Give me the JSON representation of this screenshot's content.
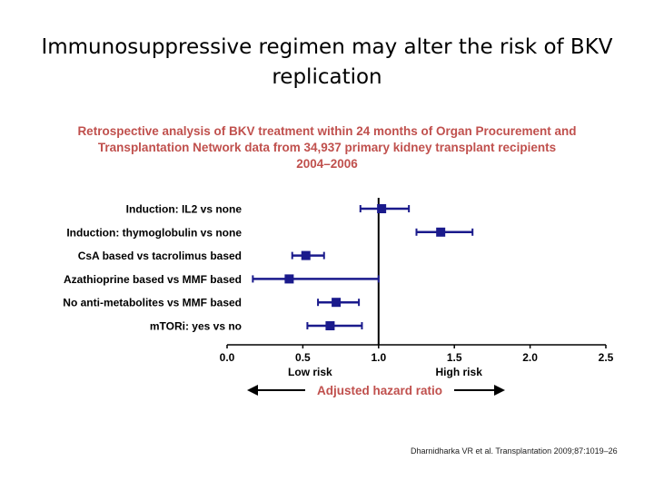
{
  "slide": {
    "title_lines": [
      "Immunosuppressive regimen may alter the risk of BKV",
      "replication"
    ],
    "citation": "Dharnidharka VR et al. Transplantation 2009;87:1019–26"
  },
  "colors": {
    "subtitle": "#c0504d",
    "marker": "#1a1a8c",
    "ci_line": "#1a1a8c",
    "reference_line": "#000000",
    "axis": "#000000",
    "axis_text": "#000000",
    "hazard_label": "#c0504d"
  },
  "chart_data": {
    "type": "forest",
    "title_lines": [
      "Retrospective analysis of BKV treatment within 24 months of Organ Procurement and",
      "Transplantation Network data from 34,937 primary kidney transplant recipients",
      "2004–2006"
    ],
    "categories": [
      "Induction: IL2 vs none",
      "Induction: thymoglobulin vs none",
      "CsA based vs tacrolimus based",
      "Azathioprine based vs MMF based",
      "No anti-metabolites vs MMF based",
      "mTORi: yes vs no"
    ],
    "estimates": [
      1.02,
      1.41,
      0.52,
      0.41,
      0.72,
      0.68
    ],
    "ci_lower": [
      0.88,
      1.25,
      0.43,
      0.17,
      0.6,
      0.53
    ],
    "ci_upper": [
      1.2,
      1.62,
      0.64,
      1.0,
      0.87,
      0.89
    ],
    "reference_value": 1.0,
    "xlim": [
      0.0,
      2.5
    ],
    "xticks": [
      "0.0",
      "0.5",
      "1.0",
      "1.5",
      "2.0",
      "2.5"
    ],
    "tick_values": [
      0.0,
      0.5,
      1.0,
      1.5,
      2.0,
      2.5
    ],
    "direction_labels": {
      "low": "Low risk",
      "high": "High risk"
    },
    "xlabel": "Adjusted hazard ratio",
    "grid": false
  }
}
